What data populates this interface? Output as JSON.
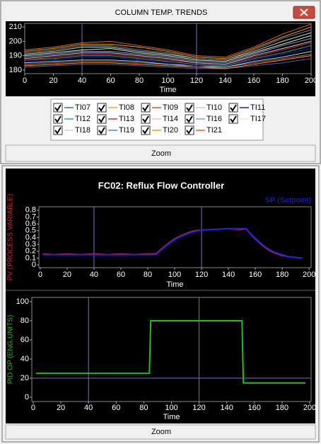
{
  "window": {
    "title": "COLUMN TEMP. TRENDS"
  },
  "zoom_buttons": [
    "Zoom",
    "Zoom"
  ],
  "chart_data": [
    {
      "type": "line",
      "xlabel": "Time",
      "x": [
        0,
        20,
        40,
        60,
        80,
        100,
        120,
        140,
        160,
        180,
        200
      ],
      "xlim": [
        0,
        200
      ],
      "ylim": [
        177.5,
        212.5
      ],
      "xticks": [
        0,
        20,
        40,
        60,
        80,
        100,
        120,
        140,
        160,
        180,
        200
      ],
      "yticks": [
        180,
        190,
        200,
        210
      ],
      "cursors": {
        "x": [
          40,
          120
        ]
      },
      "series": [
        {
          "name": "TI07",
          "color": "#4060c0",
          "values": [
            182,
            183,
            184,
            184,
            183,
            182,
            181,
            181,
            183,
            185,
            188
          ]
        },
        {
          "name": "TI08",
          "color": "#f0a040",
          "values": [
            183,
            184,
            185,
            185,
            184,
            183,
            182,
            181,
            184,
            187,
            190
          ]
        },
        {
          "name": "TI09",
          "color": "#e05020",
          "values": [
            184,
            185,
            186,
            186,
            185,
            184,
            182,
            182,
            185,
            188,
            191
          ]
        },
        {
          "name": "TI10",
          "color": "#a0e0e0",
          "values": [
            185,
            186,
            187,
            187,
            186,
            184,
            183,
            182,
            186,
            189,
            193
          ]
        },
        {
          "name": "TI11",
          "color": "#2020a0",
          "values": [
            186,
            187,
            189,
            189,
            187,
            185,
            183,
            183,
            187,
            191,
            195
          ]
        },
        {
          "name": "TI12",
          "color": "#30a0a0",
          "values": [
            187,
            188,
            190,
            190,
            188,
            186,
            184,
            183,
            188,
            192,
            197
          ]
        },
        {
          "name": "TI13",
          "color": "#c03050",
          "values": [
            187,
            189,
            191,
            191,
            189,
            187,
            185,
            184,
            189,
            194,
            199
          ]
        },
        {
          "name": "TI14",
          "color": "#f0c0c0",
          "values": [
            188,
            190,
            192,
            192,
            190,
            188,
            185,
            184,
            190,
            195,
            200
          ]
        },
        {
          "name": "TI16",
          "color": "#80a0e0",
          "values": [
            189,
            191,
            193,
            193,
            191,
            189,
            186,
            185,
            191,
            197,
            202
          ]
        },
        {
          "name": "TI17",
          "color": "#f0f0c0",
          "values": [
            190,
            192,
            194,
            195,
            192,
            190,
            187,
            186,
            192,
            198,
            204
          ]
        },
        {
          "name": "TI18",
          "color": "#c0e0c0",
          "values": [
            191,
            193,
            196,
            196,
            193,
            191,
            188,
            187,
            193,
            200,
            206
          ]
        },
        {
          "name": "TI19",
          "color": "#6080c0",
          "values": [
            192,
            194,
            197,
            197,
            194,
            192,
            188,
            187,
            194,
            202,
            208
          ]
        },
        {
          "name": "TI20",
          "color": "#f0a000",
          "values": [
            193,
            195,
            198,
            198,
            196,
            193,
            189,
            188,
            195,
            203,
            210
          ]
        },
        {
          "name": "TI21",
          "color": "#e06030",
          "values": [
            194,
            196,
            199,
            200,
            197,
            194,
            190,
            189,
            196,
            205,
            212
          ]
        }
      ]
    },
    {
      "type": "line",
      "title": "FC02: Reflux Flow Controller",
      "xlabel": "Time",
      "x": [
        2,
        10,
        20,
        30,
        40,
        50,
        60,
        70,
        80,
        86,
        90,
        95,
        100,
        105,
        110,
        115,
        120,
        130,
        140,
        150,
        153,
        157,
        160,
        165,
        170,
        175,
        180,
        185,
        190,
        195
      ],
      "xlim": [
        -1,
        201.5
      ],
      "ylim": [
        -0.04,
        0.85
      ],
      "xticks": [
        0,
        20,
        40,
        60,
        80,
        100,
        120,
        140,
        160,
        180,
        200
      ],
      "yticks": [
        0,
        0.1,
        0.2,
        0.3,
        0.4,
        0.5,
        0.6,
        0.7,
        0.8
      ],
      "cursors": {
        "x": [
          40,
          120
        ]
      },
      "series": [
        {
          "name": "PV (PROCESS VARIABLE)",
          "color": "#e02020",
          "values": [
            0.16,
            0.15,
            0.16,
            0.15,
            0.16,
            0.15,
            0.16,
            0.15,
            0.16,
            0.16,
            0.23,
            0.31,
            0.38,
            0.43,
            0.47,
            0.5,
            0.51,
            0.52,
            0.53,
            0.52,
            0.53,
            0.44,
            0.38,
            0.29,
            0.22,
            0.17,
            0.14,
            0.12,
            0.11,
            0.1
          ]
        },
        {
          "name": "SP (Setpoint)",
          "color": "#2020e0",
          "values": [
            0.15,
            0.15,
            0.15,
            0.15,
            0.15,
            0.15,
            0.15,
            0.15,
            0.15,
            0.15,
            0.22,
            0.3,
            0.37,
            0.42,
            0.46,
            0.49,
            0.51,
            0.52,
            0.53,
            0.53,
            0.53,
            0.45,
            0.39,
            0.3,
            0.23,
            0.18,
            0.15,
            0.12,
            0.11,
            0.1
          ]
        }
      ]
    },
    {
      "type": "line",
      "xlabel": "Time",
      "x": [
        2,
        84,
        85,
        151,
        152,
        197
      ],
      "xlim": [
        -1,
        201
      ],
      "ylim": [
        -4.4,
        104.4
      ],
      "xticks": [
        0,
        20,
        40,
        60,
        80,
        100,
        120,
        140,
        160,
        180,
        200
      ],
      "yticks": [
        0,
        20,
        40,
        60,
        80,
        100
      ],
      "cursors": {
        "x": [
          40,
          120
        ],
        "y": [
          20
        ]
      },
      "series": [
        {
          "name": "PID OP (ENG.UNITS)",
          "color": "#20c020",
          "values": [
            25,
            25,
            80,
            80,
            15,
            15
          ]
        }
      ]
    }
  ]
}
